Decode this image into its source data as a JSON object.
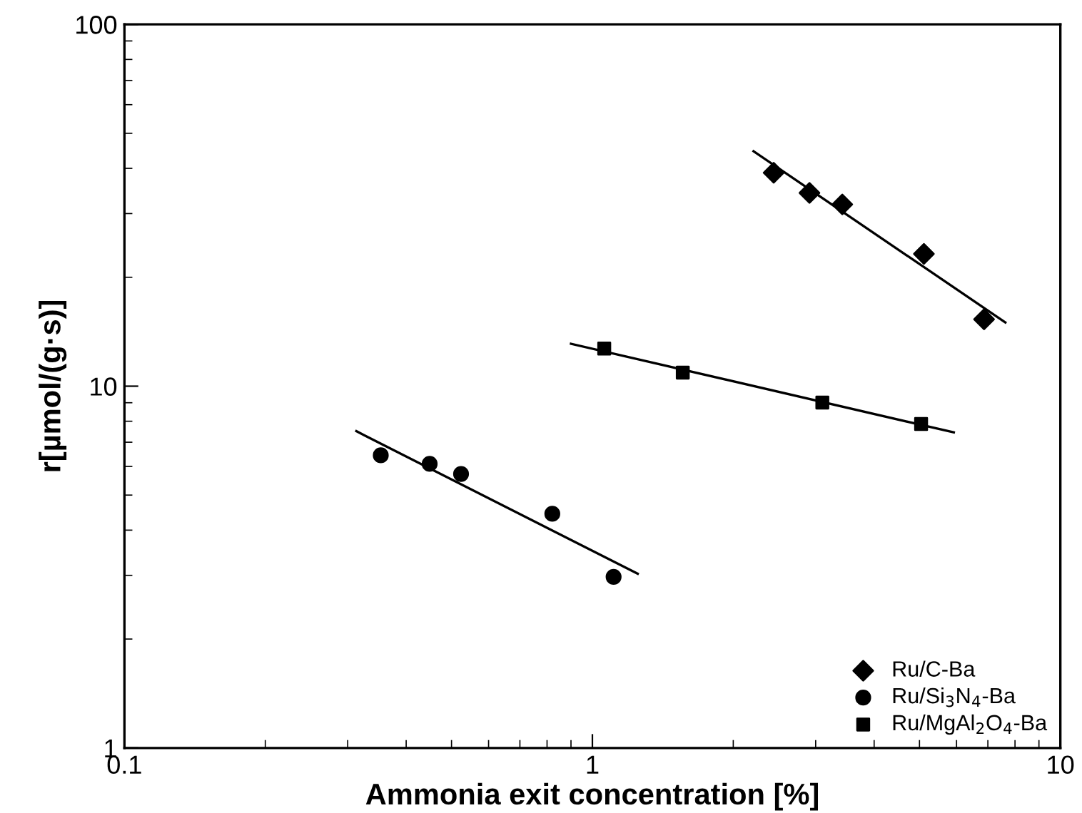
{
  "chart_data": {
    "type": "scatter",
    "xlabel": "Ammonia exit concentration [%]",
    "ylabel": "r[µmol/(g·s)]",
    "log": "xy",
    "xlim": [
      0.1,
      10
    ],
    "ylim": [
      1,
      100
    ],
    "xticks": [
      0.1,
      1,
      10
    ],
    "yticks": [
      1,
      10,
      100
    ],
    "grid": false,
    "legend": "bottom right",
    "series": [
      {
        "name": "Ru/C-Ba",
        "color": "#000000",
        "marker": "diamond",
        "x": [
          2.44,
          2.91,
          3.42,
          5.11,
          6.87
        ],
        "values": [
          38.9,
          34.2,
          31.8,
          23.2,
          15.3
        ]
      },
      {
        "name": "Ru/Si$_{3}$N$_{4}$-Ba",
        "color": "#000000",
        "marker": "circle",
        "x": [
          0.353,
          0.449,
          0.524,
          0.821,
          1.11
        ],
        "values": [
          6.44,
          6.1,
          5.72,
          4.44,
          2.97
        ]
      },
      {
        "name": "Ru/MgAl$_{2}$O$_{4}$-Ba",
        "color": "#000000",
        "marker": "square",
        "x": [
          1.06,
          1.56,
          3.1,
          5.04
        ],
        "values": [
          12.7,
          10.9,
          9.01,
          7.86
        ]
      },
      {
        "type": "line",
        "color": "#000000",
        "line_style": "solid",
        "x": [
          2.21,
          7.63
        ],
        "values": [
          44.6,
          15.0
        ]
      },
      {
        "type": "line",
        "color": "#000000",
        "line_style": "solid",
        "x": [
          0.313,
          1.25
        ],
        "values": [
          7.51,
          3.03
        ]
      },
      {
        "type": "line",
        "color": "#000000",
        "line_style": "solid",
        "x": [
          0.9,
          5.92
        ],
        "values": [
          13.1,
          7.45
        ]
      }
    ]
  }
}
